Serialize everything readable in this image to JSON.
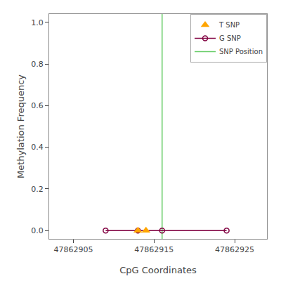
{
  "chart_data": {
    "type": "line",
    "xlabel": "CpG Coordinates",
    "ylabel": "Methylation Frequency",
    "xlim": [
      47862902,
      47862929
    ],
    "ylim": [
      -0.04,
      1.04
    ],
    "xticks": [
      47862905,
      47862915,
      47862925
    ],
    "yticks": [
      {
        "value": 0.0,
        "label": "0.0"
      },
      0.2,
      0.4,
      0.6,
      0.8,
      {
        "value": 1.0,
        "label": "1.0"
      }
    ],
    "grid": false,
    "legend": "upper right",
    "series": [
      {
        "name": "T SNP",
        "type": "scatter",
        "marker": "triangle-up",
        "color": "#ffa500",
        "x": [
          47862913,
          47862914
        ],
        "values": [
          0.0,
          0.0
        ]
      },
      {
        "name": "G SNP",
        "type": "line",
        "marker": "circle-open",
        "color": "#800040",
        "x": [
          47862909,
          47862913,
          47862916,
          47862924
        ],
        "values": [
          0.0,
          0.0,
          0.0,
          0.0
        ]
      },
      {
        "name": "SNP Position",
        "type": "vline",
        "color": "#66cc66",
        "x": [
          47862916
        ]
      }
    ]
  }
}
